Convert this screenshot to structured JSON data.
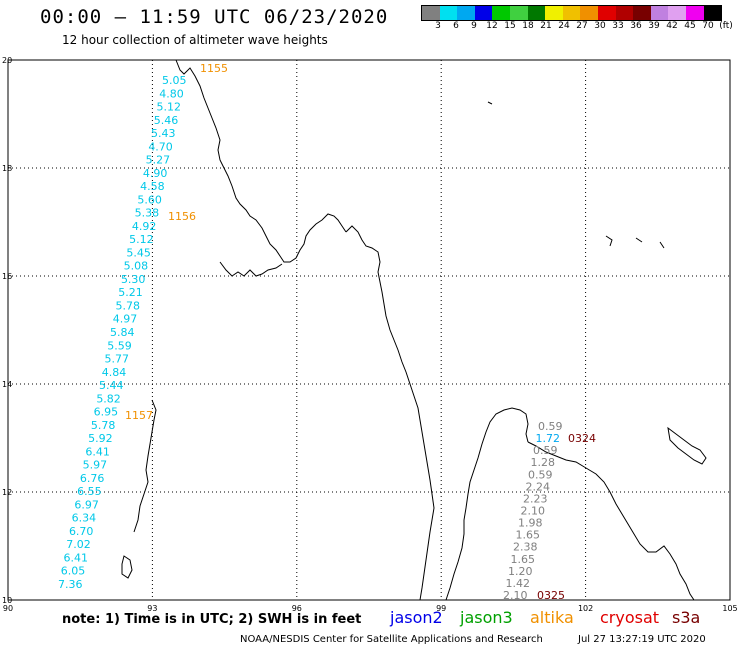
{
  "header": {
    "title": "00:00 – 11:59 UTC 06/23/2020",
    "subtitle": "12 hour collection of altimeter wave heights"
  },
  "scale": {
    "colors": [
      "#808080",
      "#00e0f0",
      "#00a8f0",
      "#0000e8",
      "#00c800",
      "#40d040",
      "#007800",
      "#f0f000",
      "#f0c000",
      "#f09000",
      "#e00000",
      "#b00000",
      "#780000",
      "#c080e0",
      "#e0a0f0",
      "#f000f0",
      "#000000"
    ],
    "labels": [
      "3",
      "6",
      "9",
      "12",
      "15",
      "18",
      "21",
      "24",
      "27",
      "30",
      "33",
      "36",
      "39",
      "42",
      "45",
      "70",
      "(ft)"
    ]
  },
  "map": {
    "lon_ticks": [
      "90",
      "93",
      "96",
      "99",
      "102",
      "105"
    ],
    "lat_ticks": [
      "20",
      "18",
      "16",
      "14",
      "12",
      "10"
    ],
    "track_west": {
      "color": "#00c8e8",
      "values": [
        "5.05",
        "4.80",
        "5.12",
        "5.46",
        "5.43",
        "4.70",
        "5.27",
        "4.90",
        "4.58",
        "5.60",
        "5.38",
        "4.92",
        "5.12",
        "5.45",
        "5.08",
        "5.30",
        "5.21",
        "5.78",
        "4.97",
        "5.84",
        "5.59",
        "5.77",
        "4.84",
        "5.44",
        "5.82",
        "6.95",
        "5.78",
        "5.92",
        "6.41",
        "5.97",
        "6.76",
        "6.55",
        "6.97",
        "6.34",
        "6.70",
        "7.02",
        "6.41",
        "6.05",
        "7.36"
      ]
    },
    "track_east": {
      "color": "#808080",
      "values": [
        "0.59",
        "1.72",
        "0.59",
        "1.28",
        "0.59",
        "2.24",
        "2.23",
        "2.10",
        "1.98",
        "1.65",
        "2.38",
        "1.65",
        "1.20",
        "1.42",
        "2.10"
      ]
    },
    "times": [
      {
        "text": "1155",
        "color": "#f09000"
      },
      {
        "text": "1156",
        "color": "#f09000"
      },
      {
        "text": "1157",
        "color": "#f09000"
      },
      {
        "text": "0324",
        "color": "#780000"
      },
      {
        "text": "0325",
        "color": "#780000"
      }
    ]
  },
  "footer": {
    "note": "note: 1) Time is in UTC; 2) SWH is in feet",
    "legend": [
      {
        "text": "jason2",
        "color": "#0000e8"
      },
      {
        "text": "jason3",
        "color": "#00a000"
      },
      {
        "text": "altika",
        "color": "#f09000"
      },
      {
        "text": "cryosat",
        "color": "#e00000"
      },
      {
        "text": "s3a",
        "color": "#780000"
      }
    ],
    "credits": "NOAA/NESDIS Center for Satellite Applications and Research",
    "date": "Jul 27 13:27:19 UTC 2020"
  }
}
